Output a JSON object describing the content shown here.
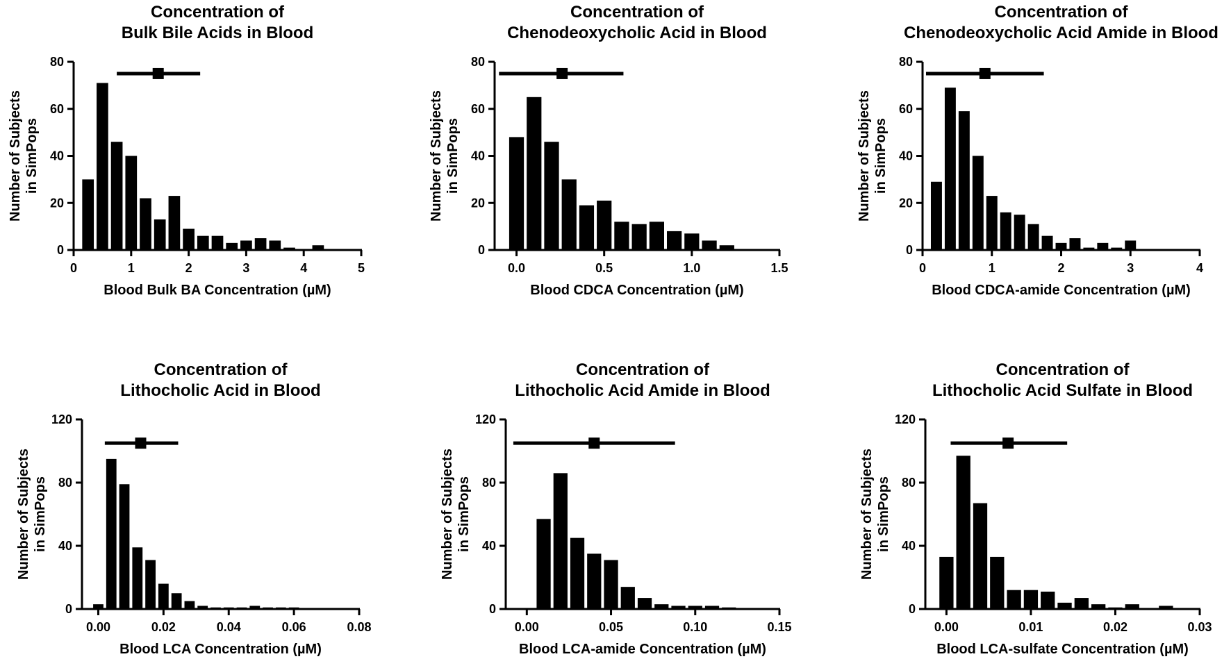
{
  "chart_data": [
    {
      "type": "bar",
      "title_lines": [
        "Concentration of",
        "Bulk Bile Acids in Blood"
      ],
      "xlabel": "Blood Bulk BA Concentration (µM)",
      "ylabel_lines": [
        "Number of Subjects",
        "in SimPops"
      ],
      "xlim": [
        0,
        5
      ],
      "ylim": [
        0,
        80
      ],
      "xticks": [
        0,
        1,
        2,
        3,
        4,
        5
      ],
      "xtick_labels": [
        "0",
        "1",
        "2",
        "3",
        "4",
        "5"
      ],
      "yticks": [
        0,
        20,
        40,
        60,
        80
      ],
      "ytick_labels": [
        "0",
        "20",
        "40",
        "60",
        "80"
      ],
      "bin_width": 0.25,
      "bin_centers": [
        0.25,
        0.5,
        0.75,
        1.0,
        1.25,
        1.5,
        1.75,
        2.0,
        2.25,
        2.5,
        2.75,
        3.0,
        3.25,
        3.5,
        3.75,
        4.0,
        4.25
      ],
      "values": [
        30,
        71,
        46,
        40,
        22,
        13,
        23,
        9,
        6,
        6,
        3,
        4,
        5,
        4,
        1,
        0,
        2
      ],
      "summary": {
        "mean": 1.47,
        "low": 0.75,
        "high": 2.2,
        "y": 75
      }
    },
    {
      "type": "bar",
      "title_lines": [
        "Concentration of",
        "Chenodeoxycholic Acid in Blood"
      ],
      "xlabel": "Blood CDCA Concentration (µM)",
      "ylabel_lines": [
        "Number of Subjects",
        "in SimPops"
      ],
      "xlim": [
        -0.125,
        1.5
      ],
      "ylim": [
        0,
        80
      ],
      "xticks": [
        0,
        0.5,
        1.0,
        1.5
      ],
      "xtick_labels": [
        "0.0",
        "0.5",
        "1.0",
        "1.5"
      ],
      "yticks": [
        0,
        20,
        40,
        60,
        80
      ],
      "ytick_labels": [
        "0",
        "20",
        "40",
        "60",
        "80"
      ],
      "bin_width": 0.1,
      "bin_centers": [
        0.0,
        0.1,
        0.2,
        0.3,
        0.4,
        0.5,
        0.6,
        0.7,
        0.8,
        0.9,
        1.0,
        1.1,
        1.2
      ],
      "values": [
        48,
        65,
        46,
        30,
        19,
        21,
        12,
        11,
        12,
        8,
        7,
        4,
        2
      ],
      "summary": {
        "mean": 0.26,
        "low": -0.1,
        "high": 0.61,
        "y": 75
      }
    },
    {
      "type": "bar",
      "title_lines": [
        "Concentration of",
        "Chenodeoxycholic Acid Amide in Blood"
      ],
      "xlabel": "Blood CDCA-amide Concentration (µM)",
      "ylabel_lines": [
        "Number of Subjects",
        "in SimPops"
      ],
      "xlim": [
        0,
        4
      ],
      "ylim": [
        0,
        80
      ],
      "xticks": [
        0,
        1,
        2,
        3,
        4
      ],
      "xtick_labels": [
        "0",
        "1",
        "2",
        "3",
        "4"
      ],
      "yticks": [
        0,
        20,
        40,
        60,
        80
      ],
      "ytick_labels": [
        "0",
        "20",
        "40",
        "60",
        "80"
      ],
      "bin_width": 0.2,
      "bin_centers": [
        0.2,
        0.4,
        0.6,
        0.8,
        1.0,
        1.2,
        1.4,
        1.6,
        1.8,
        2.0,
        2.2,
        2.4,
        2.6,
        2.8,
        3.0
      ],
      "values": [
        29,
        69,
        59,
        40,
        23,
        16,
        15,
        11,
        6,
        3,
        5,
        1,
        3,
        1,
        4
      ],
      "summary": {
        "mean": 0.9,
        "low": 0.05,
        "high": 1.75,
        "y": 75
      }
    },
    {
      "type": "bar",
      "title_lines": [
        "Concentration of",
        "Lithocholic Acid in Blood"
      ],
      "xlabel": "Blood LCA Concentration (µM)",
      "ylabel_lines": [
        "Number of Subjects",
        "in SimPops"
      ],
      "xlim": [
        -0.005,
        0.08
      ],
      "ylim": [
        0,
        120
      ],
      "xticks": [
        0,
        0.02,
        0.04,
        0.06,
        0.08
      ],
      "xtick_labels": [
        "0.00",
        "0.02",
        "0.04",
        "0.06",
        "0.08"
      ],
      "yticks": [
        0,
        40,
        80,
        120
      ],
      "ytick_labels": [
        "0",
        "40",
        "80",
        "120"
      ],
      "bin_width": 0.004,
      "bin_centers": [
        0.0,
        0.004,
        0.008,
        0.012,
        0.016,
        0.02,
        0.024,
        0.028,
        0.032,
        0.036,
        0.04,
        0.044,
        0.048,
        0.052,
        0.056,
        0.06,
        0.064
      ],
      "values": [
        3,
        95,
        79,
        39,
        31,
        16,
        10,
        5,
        2,
        1,
        1,
        1,
        2,
        1,
        1,
        1,
        0
      ],
      "summary": {
        "mean": 0.013,
        "low": 0.002,
        "high": 0.0245,
        "y": 105
      }
    },
    {
      "type": "bar",
      "title_lines": [
        "Concentration of",
        "Lithocholic Acid Amide in Blood"
      ],
      "xlabel": "Blood LCA-amide Concentration (µM)",
      "ylabel_lines": [
        "Number of Subjects",
        "in SimPops"
      ],
      "xlim": [
        -0.0125,
        0.15
      ],
      "ylim": [
        0,
        120
      ],
      "xticks": [
        0,
        0.05,
        0.1,
        0.15
      ],
      "xtick_labels": [
        "0.00",
        "0.05",
        "0.10",
        "0.15"
      ],
      "yticks": [
        0,
        40,
        80,
        120
      ],
      "ytick_labels": [
        "0",
        "40",
        "80",
        "120"
      ],
      "bin_width": 0.01,
      "bin_centers": [
        0.01,
        0.02,
        0.03,
        0.04,
        0.05,
        0.06,
        0.07,
        0.08,
        0.09,
        0.1,
        0.11,
        0.12
      ],
      "values": [
        57,
        86,
        45,
        35,
        31,
        14,
        7,
        3,
        2,
        2,
        2,
        1
      ],
      "summary": {
        "mean": 0.04,
        "low": -0.008,
        "high": 0.088,
        "y": 105
      }
    },
    {
      "type": "bar",
      "title_lines": [
        "Concentration of",
        "Lithocholic Acid Sulfate in Blood"
      ],
      "xlabel": "Blood LCA-sulfate Concentration (µM)",
      "ylabel_lines": [
        "Number of Subjects",
        "in SimPops"
      ],
      "xlim": [
        -0.0025,
        0.03
      ],
      "ylim": [
        0,
        120
      ],
      "xticks": [
        0,
        0.01,
        0.02,
        0.03
      ],
      "xtick_labels": [
        "0.00",
        "0.01",
        "0.02",
        "0.03"
      ],
      "yticks": [
        0,
        40,
        80,
        120
      ],
      "ytick_labels": [
        "0",
        "40",
        "80",
        "120"
      ],
      "bin_width": 0.002,
      "bin_centers": [
        0.0,
        0.002,
        0.004,
        0.006,
        0.008,
        0.01,
        0.012,
        0.014,
        0.016,
        0.018,
        0.02,
        0.022,
        0.024,
        0.026
      ],
      "values": [
        33,
        97,
        67,
        33,
        12,
        12,
        11,
        4,
        7,
        3,
        1,
        3,
        0,
        2
      ],
      "summary": {
        "mean": 0.0073,
        "low": 0.0005,
        "high": 0.0143,
        "y": 105
      }
    }
  ]
}
